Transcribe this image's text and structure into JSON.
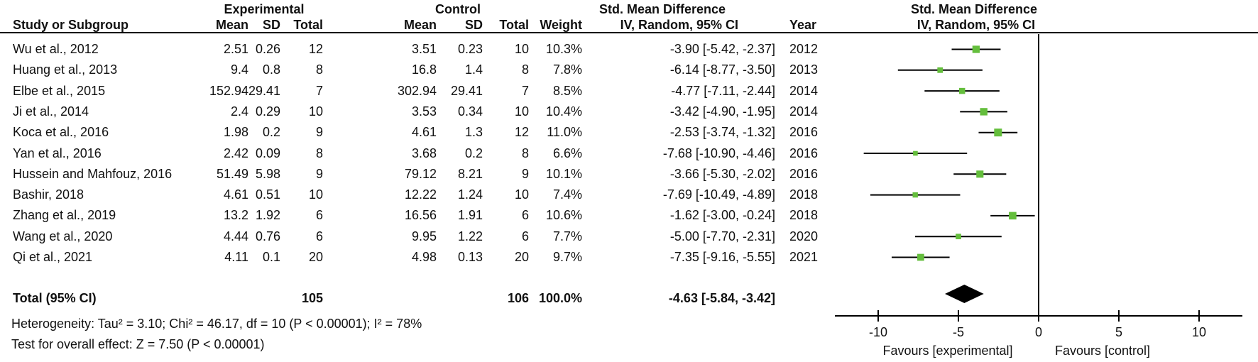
{
  "headers": {
    "experimental": "Experimental",
    "control": "Control",
    "effect": "Std. Mean Difference",
    "method": "IV, Random, 95% CI",
    "study": "Study or Subgroup",
    "mean": "Mean",
    "sd": "SD",
    "total": "Total",
    "weight": "Weight",
    "year": "Year"
  },
  "footnotes": {
    "heterogeneity": "Heterogeneity: Tau² = 3.10; Chi² = 46.17, df = 10 (P < 0.00001); I² = 78%",
    "overall": "Test for overall effect: Z = 7.50 (P < 0.00001)"
  },
  "chart_data": {
    "type": "forest",
    "effect_measure": "Std. Mean Difference",
    "model": "IV, Random, 95% CI",
    "marker_color": "#64be3c",
    "line_color": "#000000",
    "studies": [
      {
        "label": "Wu et al., 2012",
        "exp_mean": "2.51",
        "exp_sd": "0.26",
        "exp_total": "12",
        "ctrl_mean": "3.51",
        "ctrl_sd": "0.23",
        "ctrl_total": "10",
        "weight": "10.3%",
        "weight_pct": 10.3,
        "est": -3.9,
        "ci_lo": -5.42,
        "ci_hi": -2.37,
        "ci_text": "-3.90 [-5.42, -2.37]",
        "year": "2012"
      },
      {
        "label": "Huang et al., 2013",
        "exp_mean": "9.4",
        "exp_sd": "0.8",
        "exp_total": "8",
        "ctrl_mean": "16.8",
        "ctrl_sd": "1.4",
        "ctrl_total": "8",
        "weight": "7.8%",
        "weight_pct": 7.8,
        "est": -6.14,
        "ci_lo": -8.77,
        "ci_hi": -3.5,
        "ci_text": "-6.14 [-8.77, -3.50]",
        "year": "2013"
      },
      {
        "label": "Elbe et al., 2015",
        "exp_mean": "152.94",
        "exp_sd": "29.41",
        "exp_total": "7",
        "ctrl_mean": "302.94",
        "ctrl_sd": "29.41",
        "ctrl_total": "7",
        "weight": "8.5%",
        "weight_pct": 8.5,
        "est": -4.77,
        "ci_lo": -7.11,
        "ci_hi": -2.44,
        "ci_text": "-4.77 [-7.11, -2.44]",
        "year": "2014"
      },
      {
        "label": "Ji et al., 2014",
        "exp_mean": "2.4",
        "exp_sd": "0.29",
        "exp_total": "10",
        "ctrl_mean": "3.53",
        "ctrl_sd": "0.34",
        "ctrl_total": "10",
        "weight": "10.4%",
        "weight_pct": 10.4,
        "est": -3.42,
        "ci_lo": -4.9,
        "ci_hi": -1.95,
        "ci_text": "-3.42 [-4.90, -1.95]",
        "year": "2014"
      },
      {
        "label": "Koca et al., 2016",
        "exp_mean": "1.98",
        "exp_sd": "0.2",
        "exp_total": "9",
        "ctrl_mean": "4.61",
        "ctrl_sd": "1.3",
        "ctrl_total": "12",
        "weight": "11.0%",
        "weight_pct": 11.0,
        "est": -2.53,
        "ci_lo": -3.74,
        "ci_hi": -1.32,
        "ci_text": "-2.53 [-3.74, -1.32]",
        "year": "2016"
      },
      {
        "label": "Yan et al., 2016",
        "exp_mean": "2.42",
        "exp_sd": "0.09",
        "exp_total": "8",
        "ctrl_mean": "3.68",
        "ctrl_sd": "0.2",
        "ctrl_total": "8",
        "weight": "6.6%",
        "weight_pct": 6.6,
        "est": -7.68,
        "ci_lo": -10.9,
        "ci_hi": -4.46,
        "ci_text": "-7.68 [-10.90, -4.46]",
        "year": "2016"
      },
      {
        "label": "Hussein and Mahfouz, 2016",
        "exp_mean": "51.49",
        "exp_sd": "5.98",
        "exp_total": "9",
        "ctrl_mean": "79.12",
        "ctrl_sd": "8.21",
        "ctrl_total": "9",
        "weight": "10.1%",
        "weight_pct": 10.1,
        "est": -3.66,
        "ci_lo": -5.3,
        "ci_hi": -2.02,
        "ci_text": "-3.66 [-5.30, -2.02]",
        "year": "2016"
      },
      {
        "label": "Bashir, 2018",
        "exp_mean": "4.61",
        "exp_sd": "0.51",
        "exp_total": "10",
        "ctrl_mean": "12.22",
        "ctrl_sd": "1.24",
        "ctrl_total": "10",
        "weight": "7.4%",
        "weight_pct": 7.4,
        "est": -7.69,
        "ci_lo": -10.49,
        "ci_hi": -4.89,
        "ci_text": "-7.69 [-10.49, -4.89]",
        "year": "2018"
      },
      {
        "label": "Zhang et al., 2019",
        "exp_mean": "13.2",
        "exp_sd": "1.92",
        "exp_total": "6",
        "ctrl_mean": "16.56",
        "ctrl_sd": "1.91",
        "ctrl_total": "6",
        "weight": "10.6%",
        "weight_pct": 10.6,
        "est": -1.62,
        "ci_lo": -3.0,
        "ci_hi": -0.24,
        "ci_text": "-1.62 [-3.00, -0.24]",
        "year": "2018"
      },
      {
        "label": "Wang et al., 2020",
        "exp_mean": "4.44",
        "exp_sd": "0.76",
        "exp_total": "6",
        "ctrl_mean": "9.95",
        "ctrl_sd": "1.22",
        "ctrl_total": "6",
        "weight": "7.7%",
        "weight_pct": 7.7,
        "est": -5.0,
        "ci_lo": -7.7,
        "ci_hi": -2.31,
        "ci_text": "-5.00 [-7.70, -2.31]",
        "year": "2020"
      },
      {
        "label": "Qi et al., 2021",
        "exp_mean": "4.11",
        "exp_sd": "0.1",
        "exp_total": "20",
        "ctrl_mean": "4.98",
        "ctrl_sd": "0.13",
        "ctrl_total": "20",
        "weight": "9.7%",
        "weight_pct": 9.7,
        "est": -7.35,
        "ci_lo": -9.16,
        "ci_hi": -5.55,
        "ci_text": "-7.35 [-9.16, -5.55]",
        "year": "2021"
      }
    ],
    "total": {
      "label": "Total (95% CI)",
      "exp_total": "105",
      "ctrl_total": "106",
      "weight": "100.0%",
      "est": -4.63,
      "ci_lo": -5.84,
      "ci_hi": -3.42,
      "ci_text": "-4.63 [-5.84, -3.42]"
    },
    "axis": {
      "ticks": [
        -10,
        -5,
        0,
        5,
        10
      ],
      "min": -12.8,
      "max": 12.8,
      "favours_left": "Favours [experimental]",
      "favours_right": "Favours [control]"
    }
  }
}
